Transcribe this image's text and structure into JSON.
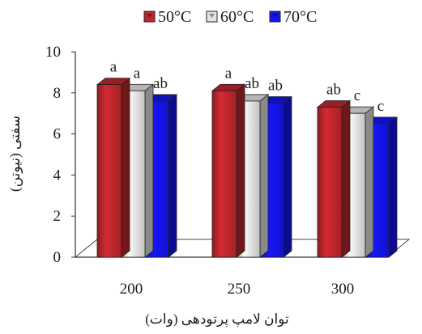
{
  "chart_data": {
    "type": "bar",
    "title": "",
    "xlabel": "توان لامپ پرتودهی (وات)",
    "ylabel": "سفتی (نیوتن)",
    "categories": [
      "200",
      "250",
      "300"
    ],
    "ylim": [
      0,
      10
    ],
    "yticks": [
      0,
      2,
      4,
      6,
      8,
      10
    ],
    "series": [
      {
        "name": "50°C",
        "color": "#c0272d",
        "values": [
          8.4,
          8.1,
          7.3
        ],
        "labels": [
          "a",
          "a",
          "ab"
        ]
      },
      {
        "name": "60°C",
        "color": "#e4e4e4",
        "values": [
          8.1,
          7.6,
          7.0
        ],
        "labels": [
          "a",
          "ab",
          "c"
        ]
      },
      {
        "name": "70°C",
        "color": "#1414f0",
        "values": [
          7.6,
          7.5,
          6.5
        ],
        "labels": [
          "ab",
          "ab",
          "c"
        ]
      }
    ],
    "legend_position": "top",
    "grid": false
  }
}
